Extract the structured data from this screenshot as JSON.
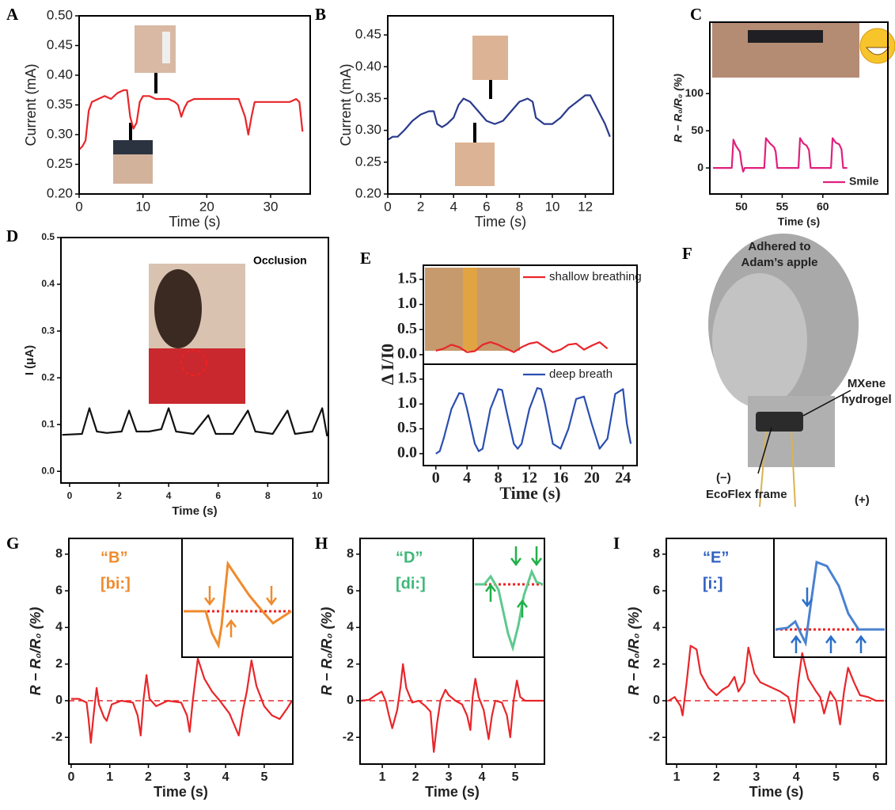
{
  "chart_data": [
    {
      "panel": "A",
      "type": "line",
      "xlabel": "Time (s)",
      "ylabel": "Current (mA)",
      "xlim": [
        0,
        36.2
      ],
      "ylim": [
        0.2,
        0.5
      ],
      "xticks": [
        0,
        10,
        20,
        30
      ],
      "yticks": [
        {
          "value": 0.2,
          "label": "0.20"
        },
        0.25,
        {
          "value": 0.3,
          "label": "0.30"
        },
        0.35,
        {
          "value": 0.4,
          "label": "0.40"
        },
        0.45,
        {
          "value": 0.5,
          "label": "0.50"
        }
      ],
      "x": [
        0,
        0.5,
        1,
        1.5,
        2,
        3,
        4,
        5,
        6,
        7,
        7.5,
        8,
        8.5,
        9,
        9.5,
        10,
        11,
        12,
        13,
        14,
        15,
        15.5,
        16,
        16.5,
        17,
        18,
        20,
        22,
        24,
        25,
        26,
        26.5,
        27,
        27.5,
        29,
        31,
        33,
        34,
        34.5,
        35
      ],
      "series": [
        {
          "color": "#e8262a",
          "values": [
            0.275,
            0.28,
            0.29,
            0.34,
            0.355,
            0.36,
            0.365,
            0.36,
            0.37,
            0.375,
            0.375,
            0.33,
            0.31,
            0.32,
            0.355,
            0.365,
            0.365,
            0.36,
            0.36,
            0.36,
            0.355,
            0.35,
            0.33,
            0.345,
            0.355,
            0.36,
            0.36,
            0.36,
            0.36,
            0.36,
            0.33,
            0.3,
            0.33,
            0.355,
            0.355,
            0.355,
            0.355,
            0.36,
            0.355,
            0.305
          ]
        }
      ]
    },
    {
      "panel": "B",
      "type": "line",
      "xlabel": "Time (s)",
      "ylabel": "Current (mA)",
      "xlim": [
        0,
        13.7
      ],
      "ylim": [
        0.2,
        0.48
      ],
      "xticks": [
        0,
        2,
        4,
        6,
        8,
        10,
        12
      ],
      "yticks": [
        {
          "value": 0.2,
          "label": "0.20"
        },
        0.25,
        {
          "value": 0.3,
          "label": "0.30"
        },
        0.35,
        {
          "value": 0.4,
          "label": "0.40"
        },
        0.45
      ],
      "x": [
        0,
        0.3,
        0.6,
        1,
        1.5,
        2,
        2.5,
        2.8,
        3,
        3.3,
        3.6,
        4,
        4.3,
        4.6,
        5,
        5.5,
        6,
        6.5,
        7,
        7.5,
        8,
        8.5,
        8.8,
        9,
        9.5,
        10,
        10.5,
        11,
        11.5,
        12,
        12.3,
        12.8,
        13.2,
        13.5
      ],
      "series": [
        {
          "color": "#2a3a8c",
          "values": [
            0.285,
            0.29,
            0.29,
            0.3,
            0.315,
            0.325,
            0.33,
            0.33,
            0.31,
            0.305,
            0.31,
            0.32,
            0.34,
            0.35,
            0.345,
            0.33,
            0.315,
            0.31,
            0.315,
            0.33,
            0.345,
            0.35,
            0.345,
            0.32,
            0.31,
            0.31,
            0.32,
            0.335,
            0.345,
            0.355,
            0.355,
            0.33,
            0.31,
            0.29
          ]
        }
      ]
    },
    {
      "panel": "C",
      "type": "line",
      "xlabel": "Time (s)",
      "ylabel": "R − R₀/R₀ (%)",
      "xlim": [
        46.1,
        68
      ],
      "ylim": [
        -35,
        196
      ],
      "xticks": [
        50,
        55,
        60
      ],
      "yticks": [
        0,
        50,
        100
      ],
      "x": [
        46.5,
        48,
        48.8,
        49,
        49.3,
        49.6,
        49.8,
        50,
        50.2,
        50.4,
        52,
        52.8,
        53,
        53.5,
        54,
        54.2,
        54.4,
        56,
        57,
        57.2,
        57.6,
        58,
        58.3,
        58.5,
        60,
        61,
        61.2,
        61.6,
        62,
        62.3,
        62.5,
        63
      ],
      "series": [
        {
          "name": "Smile",
          "color": "#e0207c",
          "values": [
            0,
            0,
            0,
            38,
            30,
            25,
            22,
            5,
            -5,
            0,
            0,
            0,
            40,
            33,
            28,
            22,
            0,
            0,
            0,
            40,
            33,
            30,
            24,
            0,
            0,
            0,
            40,
            34,
            32,
            25,
            0,
            0
          ]
        }
      ]
    },
    {
      "panel": "D",
      "type": "line",
      "xlabel": "Time (s)",
      "ylabel": "I (μA)",
      "annotations": [
        {
          "text": "Occlusion",
          "color": "#000000"
        }
      ],
      "xlim": [
        -0.35,
        10.45
      ],
      "ylim": [
        -0.025,
        0.5
      ],
      "xticks": [
        0,
        2,
        4,
        6,
        8,
        10
      ],
      "yticks": [
        {
          "value": 0,
          "label": "0.0"
        },
        0.1,
        0.2,
        0.3,
        0.4,
        0.5
      ],
      "x": [
        -0.3,
        0.5,
        0.8,
        1.1,
        1.5,
        2.1,
        2.4,
        2.7,
        3.2,
        3.7,
        4,
        4.3,
        5,
        5.6,
        5.9,
        6.6,
        7.2,
        7.5,
        8.2,
        8.8,
        9.1,
        9.8,
        10.2,
        10.4
      ],
      "series": [
        {
          "color": "#111111",
          "values": [
            0.078,
            0.08,
            0.135,
            0.085,
            0.082,
            0.085,
            0.13,
            0.085,
            0.085,
            0.09,
            0.135,
            0.085,
            0.08,
            0.12,
            0.08,
            0.08,
            0.13,
            0.085,
            0.08,
            0.13,
            0.08,
            0.085,
            0.135,
            0.075
          ]
        }
      ]
    },
    {
      "panel": "E",
      "type": "line",
      "xlim": [
        -1.6,
        25.8
      ],
      "ylim": [
        -0.19,
        1.78
      ],
      "yticks": [
        {
          "value": 0,
          "label": "0.0"
        },
        0.5,
        {
          "value": 1,
          "label": "1.0"
        },
        1.5
      ],
      "x": [
        0,
        1,
        2,
        3,
        4,
        5,
        6,
        7,
        8,
        9,
        10,
        11,
        12,
        13,
        14,
        15,
        16,
        17,
        18,
        19,
        20,
        21,
        22
      ],
      "series": [
        {
          "name": "shallow breathing",
          "color": "#e8262a",
          "values": [
            0.08,
            0.12,
            0.2,
            0.15,
            0.05,
            0.07,
            0.2,
            0.25,
            0.2,
            0.12,
            0.05,
            0.15,
            0.22,
            0.25,
            0.15,
            0.05,
            0.1,
            0.2,
            0.22,
            0.1,
            0.18,
            0.25,
            0.12
          ]
        }
      ]
    },
    {
      "type": "line",
      "xlabel": "Time (s)",
      "ylabel": "Δ I/I0",
      "xlim": [
        -1.6,
        25.8
      ],
      "ylim": [
        -0.24,
        1.8
      ],
      "xticks": [
        0,
        4,
        8,
        12,
        16,
        20,
        24
      ],
      "yticks": [
        {
          "value": 0,
          "label": "0.0"
        },
        0.5,
        {
          "value": 1,
          "label": "1.0"
        },
        1.5
      ],
      "x": [
        0,
        0.5,
        1,
        2,
        3,
        3.5,
        4,
        5,
        5.5,
        6,
        7,
        8,
        8.5,
        9,
        10,
        10.5,
        11,
        12,
        13,
        13.5,
        14,
        15,
        16,
        17,
        18,
        19,
        20,
        21,
        22,
        23,
        24,
        24.5,
        25
      ],
      "series": [
        {
          "name": "deep breath",
          "color": "#2a4fb0",
          "values": [
            0,
            0.05,
            0.3,
            0.9,
            1.22,
            1.2,
            0.9,
            0.2,
            0.05,
            0.1,
            0.9,
            1.3,
            1.28,
            0.9,
            0.2,
            0.1,
            0.2,
            0.9,
            1.32,
            1.3,
            1.0,
            0.2,
            0.1,
            0.5,
            1.1,
            1.15,
            0.6,
            0.1,
            0.3,
            1.2,
            1.3,
            0.6,
            0.2
          ]
        }
      ]
    },
    {
      "panel": "G",
      "type": "line",
      "xlabel": "Time (s)",
      "ylabel": "R − R₀/R₀ (%)",
      "hline": 0,
      "annotations": [
        {
          "text": "“B”",
          "color": "#f08a2c"
        },
        {
          "text": "[bi:]",
          "color": "#f08a2c"
        }
      ],
      "xlim": [
        -0.06,
        5.74
      ],
      "ylim": [
        -3.46,
        8.86
      ],
      "xticks": [
        0,
        1,
        2,
        3,
        4,
        5
      ],
      "yticks": [
        -2,
        0,
        2,
        4,
        6,
        8
      ],
      "x": [
        0,
        0.2,
        0.4,
        0.45,
        0.51,
        0.58,
        0.66,
        0.72,
        0.85,
        0.92,
        1.05,
        1.3,
        1.6,
        1.72,
        1.8,
        1.87,
        1.95,
        2.03,
        2.2,
        2.5,
        2.85,
        3.0,
        3.07,
        3.15,
        3.28,
        3.45,
        3.65,
        3.85,
        4.1,
        4.34,
        4.45,
        4.55,
        4.67,
        4.8,
        5.0,
        5.2,
        5.4,
        5.6,
        5.72
      ],
      "series": [
        {
          "color": "#e8262a",
          "values": [
            0.1,
            0.1,
            -0.1,
            -1,
            -2.3,
            -0.8,
            0.7,
            -0.2,
            -0.9,
            -1.1,
            -0.2,
            0,
            -0.1,
            -0.8,
            -1.9,
            0,
            1.4,
            0.1,
            -0.3,
            0,
            -0.1,
            -0.8,
            -1.7,
            0,
            2.3,
            1.2,
            0.5,
            0,
            -0.7,
            -1.9,
            -0.5,
            0.5,
            2.2,
            0.8,
            -0.3,
            -0.8,
            -1.0,
            -0.4,
            0
          ]
        }
      ]
    },
    {
      "panel": "H",
      "type": "line",
      "xlabel": "Time (s)",
      "ylabel": "R − R₀/R₀ (%)",
      "hline": 0,
      "annotations": [
        {
          "text": "“D”",
          "color": "#3cb878"
        },
        {
          "text": "[di:]",
          "color": "#3cb878"
        }
      ],
      "xlim": [
        0.33,
        5.88
      ],
      "ylim": [
        -3.46,
        8.86
      ],
      "xticks": [
        1,
        2,
        3,
        4,
        5
      ],
      "yticks": [
        -2,
        0,
        2,
        4,
        6,
        8
      ],
      "x": [
        0.35,
        0.6,
        0.8,
        0.98,
        1.1,
        1.2,
        1.3,
        1.45,
        1.55,
        1.62,
        1.72,
        1.9,
        2.1,
        2.3,
        2.45,
        2.55,
        2.65,
        2.75,
        2.9,
        3.0,
        3.2,
        3.4,
        3.55,
        3.65,
        3.72,
        3.8,
        3.9,
        4.05,
        4.2,
        4.3,
        4.4,
        4.6,
        4.75,
        4.85,
        4.95,
        5.05,
        5.15,
        5.3,
        5.5,
        5.85
      ],
      "series": [
        {
          "color": "#e8262a",
          "values": [
            0,
            0.05,
            0.3,
            0.5,
            0,
            -0.8,
            -1.5,
            -0.5,
            0.8,
            2.0,
            0.7,
            -0.1,
            0,
            -0.3,
            -0.6,
            -2.8,
            -1.2,
            0,
            0.6,
            0.3,
            0,
            -0.2,
            -0.8,
            -1.6,
            0.2,
            1.2,
            0.2,
            -0.5,
            -2.1,
            -0.8,
            0,
            -0.1,
            -0.8,
            -2.0,
            0,
            1.1,
            0.2,
            0,
            0,
            0
          ]
        }
      ]
    },
    {
      "panel": "I",
      "type": "line",
      "xlabel": "Time (s)",
      "ylabel": "R − R₀/R₀ (%)",
      "hline": 0,
      "annotations": [
        {
          "text": "“E”",
          "color": "#3060c0"
        },
        {
          "text": "[i:]",
          "color": "#3060c0"
        }
      ],
      "xlim": [
        0.74,
        6.26
      ],
      "ylim": [
        -3.46,
        8.86
      ],
      "xticks": [
        1,
        2,
        3,
        4,
        5,
        6
      ],
      "yticks": [
        -2,
        0,
        2,
        4,
        6,
        8
      ],
      "x": [
        0.8,
        0.95,
        1.1,
        1.15,
        1.25,
        1.35,
        1.5,
        1.6,
        1.8,
        2.0,
        2.15,
        2.3,
        2.45,
        2.55,
        2.7,
        2.8,
        2.95,
        3.1,
        3.4,
        3.6,
        3.8,
        3.95,
        4.05,
        4.15,
        4.3,
        4.5,
        4.6,
        4.7,
        4.85,
        5.0,
        5.1,
        5.2,
        5.3,
        5.45,
        5.6,
        5.8,
        6.0,
        6.2
      ],
      "series": [
        {
          "color": "#e8262a",
          "values": [
            0,
            0.2,
            -0.3,
            -0.8,
            1.0,
            3.0,
            2.8,
            1.5,
            0.7,
            0.3,
            0.6,
            0.8,
            1.3,
            0.5,
            1.0,
            2.9,
            1.5,
            1.0,
            0.7,
            0.5,
            0.2,
            -1.2,
            1.0,
            2.6,
            1.2,
            0.5,
            0.2,
            -0.7,
            0.5,
            0,
            -1.3,
            0.5,
            1.8,
            1.0,
            0.3,
            0.2,
            0,
            0
          ]
        }
      ]
    }
  ],
  "illustration": {
    "panel": "F",
    "labels": [
      "Adhered to",
      "Adam’s apple",
      "MXene",
      "hydrogel",
      "(−)",
      "EcoFlex frame",
      "(+)"
    ]
  }
}
